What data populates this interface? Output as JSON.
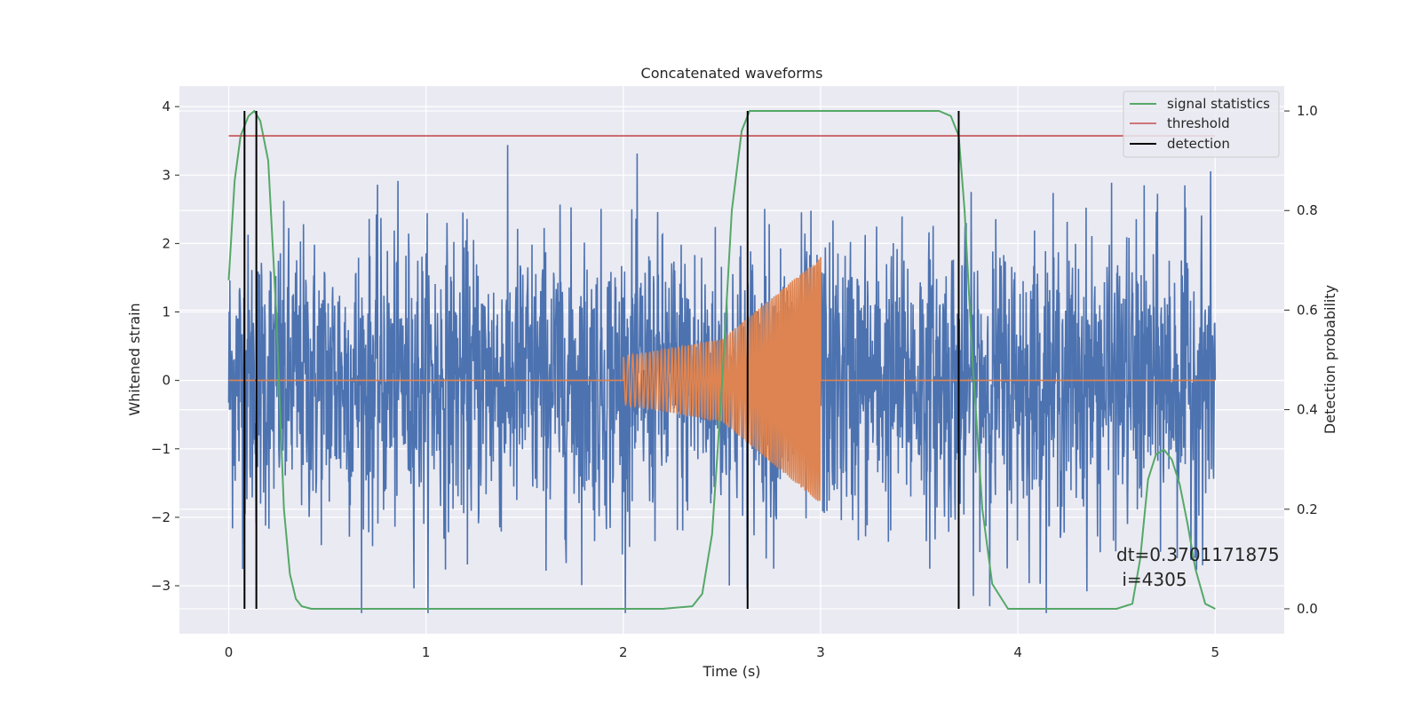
{
  "chart_data": {
    "type": "line",
    "title": "Concatenated waveforms",
    "xlabel": "Time (s)",
    "ylabel": "Whitened strain",
    "y2label": "Detection probability",
    "xlim": [
      -0.25,
      5.35
    ],
    "ylim": [
      -3.7,
      4.3
    ],
    "y2lim": [
      -0.05,
      1.05
    ],
    "xticks": [
      0,
      1,
      2,
      3,
      4,
      5
    ],
    "yticks": [
      -3,
      -2,
      -1,
      0,
      1,
      2,
      3,
      4
    ],
    "y2ticks": [
      0.0,
      0.2,
      0.4,
      0.6,
      0.8,
      1.0
    ],
    "xtick_labels": [
      "0",
      "1",
      "2",
      "3",
      "4",
      "5"
    ],
    "ytick_labels": [
      "−3",
      "−2",
      "−1",
      "0",
      "1",
      "2",
      "3",
      "4"
    ],
    "y2tick_labels": [
      "0.0",
      "0.2",
      "0.4",
      "0.6",
      "0.8",
      "1.0"
    ],
    "grid": true,
    "legend": {
      "position": "top-right",
      "entries": [
        {
          "label": "signal statistics",
          "color": "#55a868"
        },
        {
          "label": "threshold",
          "color": "#c44e52"
        },
        {
          "label": "detection",
          "color": "#000000"
        }
      ]
    },
    "series": [
      {
        "key": "noise",
        "color": "#4c72b0",
        "axis": "left",
        "x_range": [
          0,
          5
        ],
        "amplitude": 1.0,
        "y_range_approx": [
          -3.4,
          4.0
        ]
      },
      {
        "key": "chirp",
        "color": "#dd8452",
        "axis": "left",
        "x": [
          0,
          2.0,
          2.0,
          2.5,
          3.0,
          3.0,
          5.0
        ],
        "envelope": [
          0,
          0,
          0.35,
          0.6,
          1.8,
          0,
          0
        ]
      },
      {
        "name": "signal statistics",
        "color": "#55a868",
        "axis": "right",
        "x": [
          0.0,
          0.03,
          0.06,
          0.1,
          0.13,
          0.16,
          0.2,
          0.24,
          0.28,
          0.31,
          0.34,
          0.37,
          0.42,
          2.2,
          2.35,
          2.4,
          2.45,
          2.5,
          2.55,
          2.6,
          2.64,
          2.7,
          2.8,
          3.6,
          3.66,
          3.7,
          3.73,
          3.77,
          3.82,
          3.87,
          3.95,
          4.5,
          4.58,
          4.62,
          4.66,
          4.7,
          4.74,
          4.78,
          4.82,
          4.86,
          4.9,
          4.95,
          5.0
        ],
        "y": [
          0.66,
          0.86,
          0.95,
          0.99,
          1.0,
          0.98,
          0.9,
          0.6,
          0.2,
          0.07,
          0.02,
          0.005,
          0.0,
          0.0,
          0.005,
          0.03,
          0.15,
          0.45,
          0.8,
          0.96,
          1.0,
          1.0,
          1.0,
          1.0,
          0.99,
          0.95,
          0.8,
          0.5,
          0.2,
          0.05,
          0.0,
          0.0,
          0.01,
          0.1,
          0.26,
          0.31,
          0.32,
          0.3,
          0.25,
          0.17,
          0.08,
          0.01,
          0.0
        ]
      },
      {
        "name": "threshold",
        "color": "#c44e52",
        "axis": "right",
        "x": [
          0,
          5
        ],
        "y": [
          0.95,
          0.95
        ]
      }
    ],
    "detections_x": [
      0.08,
      0.14,
      2.63,
      3.7
    ],
    "annotation": "dt=0.3701171875\n i=4305"
  }
}
